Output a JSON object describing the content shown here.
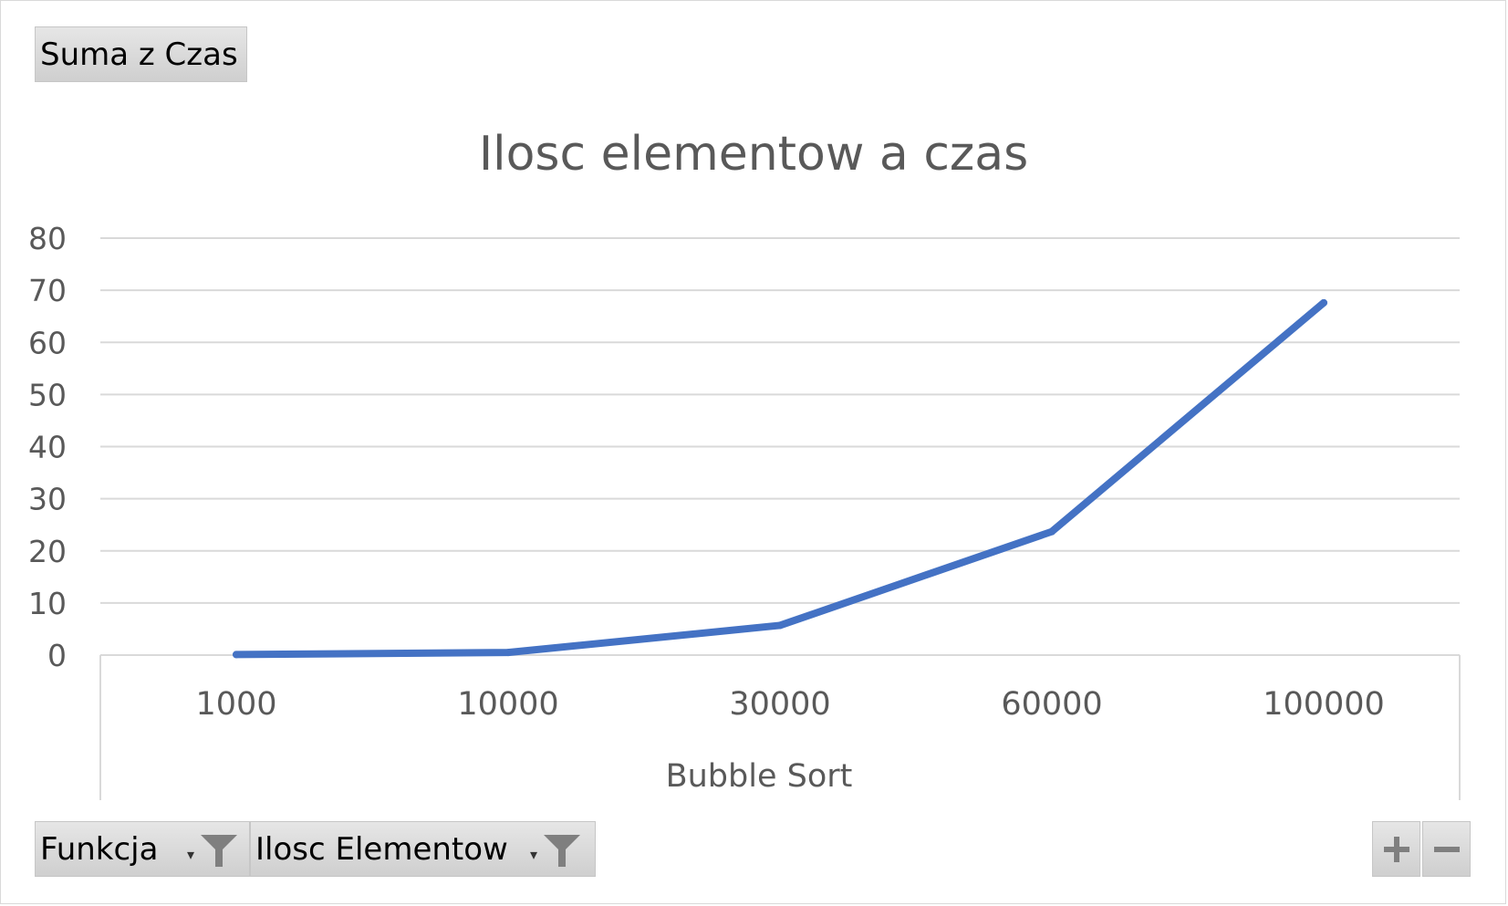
{
  "value_field_button": "Suma z Czas",
  "filter_buttons": [
    {
      "label": "Funkcja",
      "icon": "funnel-icon"
    },
    {
      "label": "Ilosc Elementow",
      "icon": "funnel-icon"
    }
  ],
  "zoom_buttons": [
    {
      "symbol": "+",
      "icon": "plus-icon"
    },
    {
      "symbol": "−",
      "icon": "minus-icon"
    }
  ],
  "chart_data": {
    "type": "line",
    "title": "Ilosc elementow a czas",
    "xlabel": "Bubble Sort",
    "ylabel": "",
    "categories": [
      "1000",
      "10000",
      "30000",
      "60000",
      "100000"
    ],
    "series": [
      {
        "values": [
          0.1,
          0.5,
          5.7,
          23.7,
          67.6
        ],
        "color": "#4472c4"
      }
    ],
    "ylim": [
      0,
      80
    ],
    "yticks": [
      0,
      10,
      20,
      30,
      40,
      50,
      60,
      70,
      80
    ],
    "grid": true,
    "legend": "none"
  }
}
